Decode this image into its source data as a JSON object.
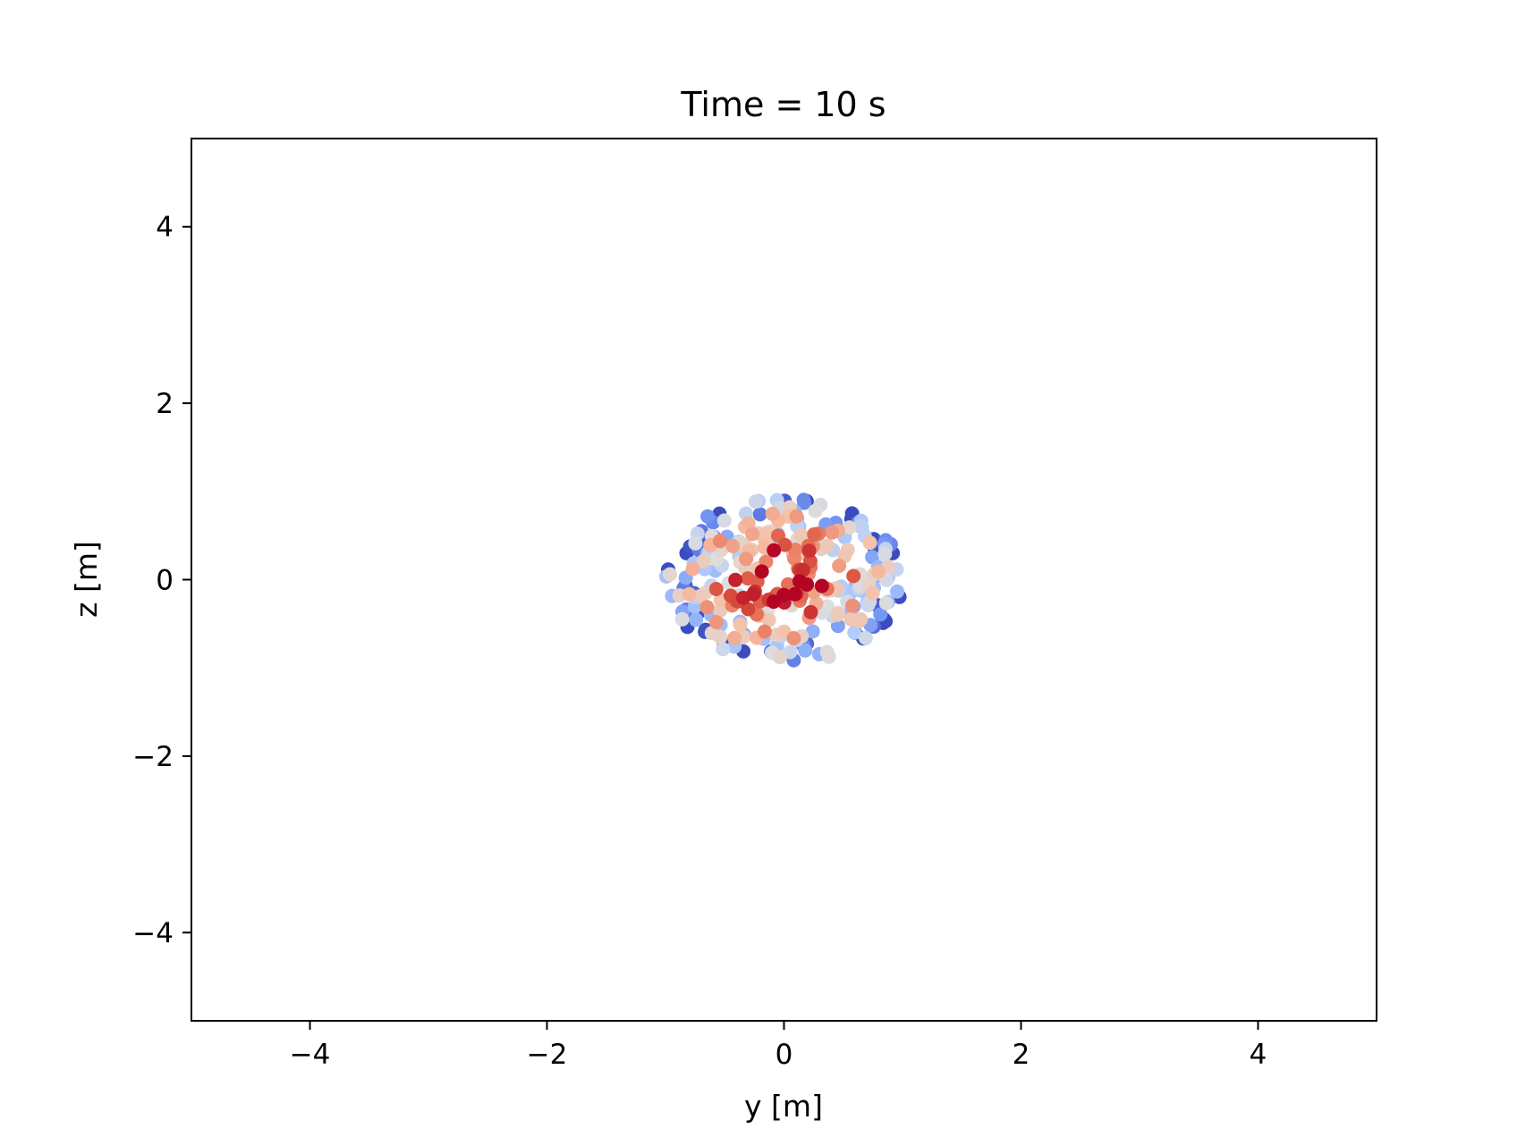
{
  "chart_data": {
    "type": "scatter",
    "title": "Time = 10 s",
    "xlabel": "y [m]",
    "ylabel": "z [m]",
    "xlim": [
      -5,
      5
    ],
    "ylim": [
      -5,
      5
    ],
    "xticks": [
      -4,
      -2,
      0,
      2,
      4
    ],
    "xtick_labels": [
      "−4",
      "−2",
      "0",
      "2",
      "4"
    ],
    "yticks": [
      -4,
      -2,
      0,
      2,
      4
    ],
    "ytick_labels": [
      "−4",
      "−2",
      "0",
      "2",
      "4"
    ],
    "grid": false,
    "colormap": "coolwarm",
    "colormap_stops": [
      "#3b4cc0",
      "#7396f5",
      "#b0cbfc",
      "#dddddd",
      "#f6bfa6",
      "#e7745b",
      "#d24235",
      "#b40426"
    ],
    "point_count": 300,
    "cloud_center": [
      0.0,
      0.0
    ],
    "cloud_radius_y": 1.0,
    "cloud_radius_z": 0.95
  }
}
